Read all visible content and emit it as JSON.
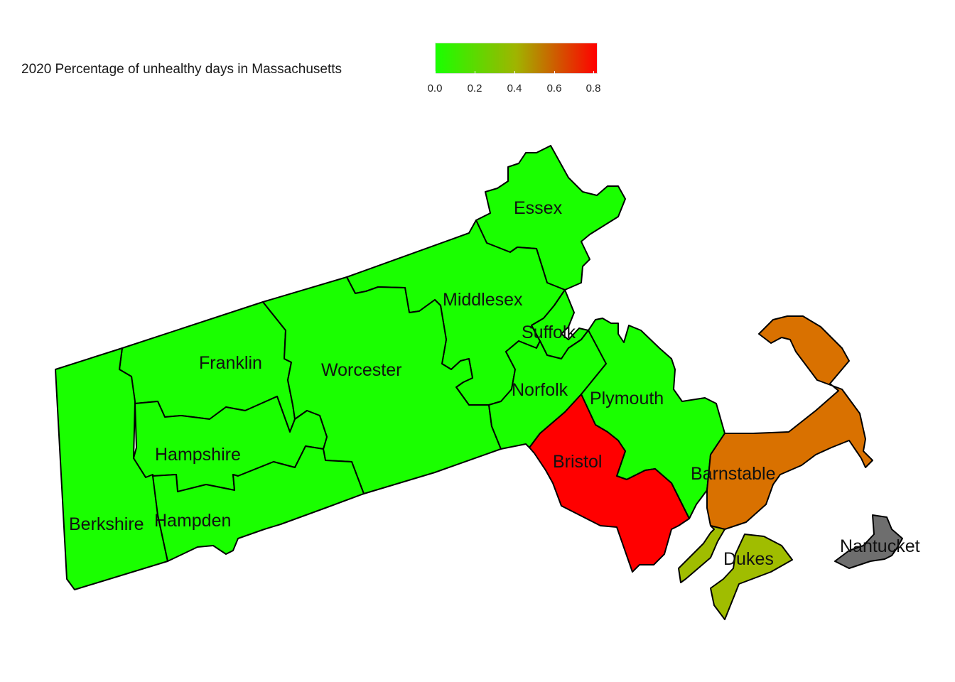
{
  "legend": {
    "title": "2020 Percentage of unhealthy days in Massachusetts",
    "color_low": "#1aff00",
    "color_mid": "#a0b400",
    "color_high": "#ff0000",
    "na_color": "#6e6e6e",
    "ticks": [
      "0.0",
      "0.2",
      "0.4",
      "0.6",
      "0.8"
    ]
  },
  "map_data": {
    "type": "choropleth",
    "counties": [
      {
        "name": "Essex",
        "fill": "#1aff00"
      },
      {
        "name": "Middlesex",
        "fill": "#1aff00"
      },
      {
        "name": "Suffolk",
        "fill": "#1aff00"
      },
      {
        "name": "Franklin",
        "fill": "#1aff00"
      },
      {
        "name": "Worcester",
        "fill": "#1aff00"
      },
      {
        "name": "Norfolk",
        "fill": "#1aff00"
      },
      {
        "name": "Plymouth",
        "fill": "#1aff00"
      },
      {
        "name": "Hampshire",
        "fill": "#1aff00"
      },
      {
        "name": "Bristol",
        "fill": "#ff0000"
      },
      {
        "name": "Barnstable",
        "fill": "#d97100"
      },
      {
        "name": "Berkshire",
        "fill": "#1aff00"
      },
      {
        "name": "Hampden",
        "fill": "#1aff00"
      },
      {
        "name": "Dukes",
        "fill": "#a0bd00"
      },
      {
        "name": "Nantucket",
        "fill": "#6e6e6e"
      }
    ]
  }
}
